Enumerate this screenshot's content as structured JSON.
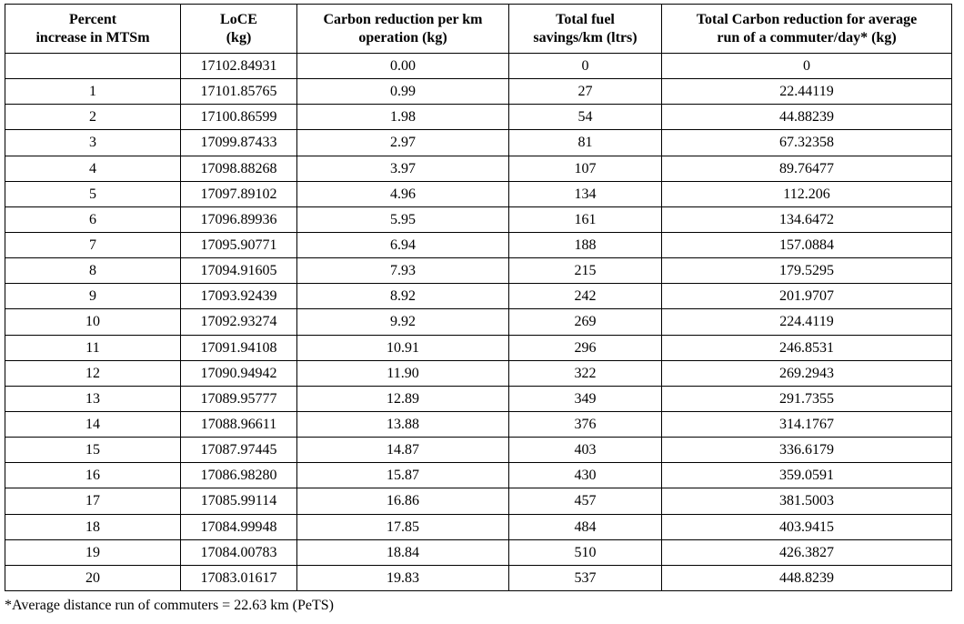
{
  "headers": [
    [
      "Percent",
      "increase in MTSm"
    ],
    [
      "LoCE",
      "(kg)"
    ],
    [
      "Carbon reduction per km",
      "operation (kg)"
    ],
    [
      "Total fuel",
      "savings/km (ltrs)"
    ],
    [
      "Total Carbon reduction for average",
      "run of  a commuter/day* (kg)"
    ]
  ],
  "rows": [
    [
      "",
      "17102.84931",
      "0.00",
      "0",
      "0"
    ],
    [
      "1",
      "17101.85765",
      "0.99",
      "27",
      "22.44119"
    ],
    [
      "2",
      "17100.86599",
      "1.98",
      "54",
      "44.88239"
    ],
    [
      "3",
      "17099.87433",
      "2.97",
      "81",
      "67.32358"
    ],
    [
      "4",
      "17098.88268",
      "3.97",
      "107",
      "89.76477"
    ],
    [
      "5",
      "17097.89102",
      "4.96",
      "134",
      "112.206"
    ],
    [
      "6",
      "17096.89936",
      "5.95",
      "161",
      "134.6472"
    ],
    [
      "7",
      "17095.90771",
      "6.94",
      "188",
      "157.0884"
    ],
    [
      "8",
      "17094.91605",
      "7.93",
      "215",
      "179.5295"
    ],
    [
      "9",
      "17093.92439",
      "8.92",
      "242",
      "201.9707"
    ],
    [
      "10",
      "17092.93274",
      "9.92",
      "269",
      "224.4119"
    ],
    [
      "11",
      "17091.94108",
      "10.91",
      "296",
      "246.8531"
    ],
    [
      "12",
      "17090.94942",
      "11.90",
      "322",
      "269.2943"
    ],
    [
      "13",
      "17089.95777",
      "12.89",
      "349",
      "291.7355"
    ],
    [
      "14",
      "17088.96611",
      "13.88",
      "376",
      "314.1767"
    ],
    [
      "15",
      "17087.97445",
      "14.87",
      "403",
      "336.6179"
    ],
    [
      "16",
      "17086.98280",
      "15.87",
      "430",
      "359.0591"
    ],
    [
      "17",
      "17085.99114",
      "16.86",
      "457",
      "381.5003"
    ],
    [
      "18",
      "17084.99948",
      "17.85",
      "484",
      "403.9415"
    ],
    [
      "19",
      "17084.00783",
      "18.84",
      "510",
      "426.3827"
    ],
    [
      "20",
      "17083.01617",
      "19.83",
      "537",
      "448.8239"
    ]
  ],
  "footnote": "*Average distance run of commuters = 22.63 km (PeTS)"
}
